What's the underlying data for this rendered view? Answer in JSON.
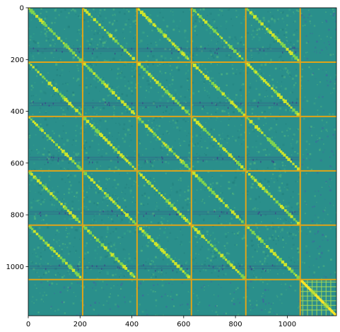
{
  "chart_data": {
    "type": "heatmap",
    "title": "",
    "xlabel": "",
    "ylabel": "",
    "xlim": [
      0,
      1190
    ],
    "ylim": [
      1190,
      0
    ],
    "x_ticks": [
      0,
      200,
      400,
      600,
      800,
      1000
    ],
    "y_ticks": [
      0,
      200,
      400,
      600,
      800,
      1000
    ],
    "block_boundaries": [
      210,
      420,
      630,
      840,
      1050
    ],
    "block_ranges": [
      [
        0,
        210
      ],
      [
        210,
        420
      ],
      [
        420,
        630
      ],
      [
        630,
        840
      ],
      [
        840,
        1050
      ],
      [
        1050,
        1190
      ]
    ],
    "colormap": "viridis",
    "colors": {
      "background": "#2a8f8b",
      "divider_line": "#e0a418",
      "diagonal_high": "#cfe52a",
      "dark_stripe": "#3b3f87",
      "light_speckle": "#4db380",
      "last_block_background": "#2c8d8c",
      "last_block_grid": "#a5d954"
    }
  }
}
